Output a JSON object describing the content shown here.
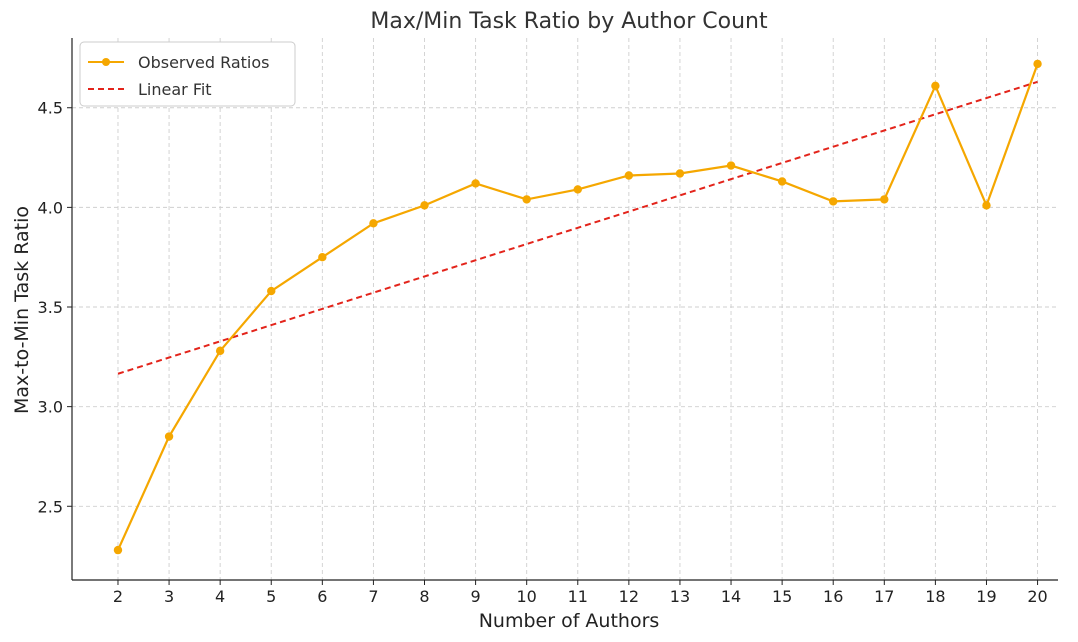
{
  "chart_data": {
    "type": "line",
    "title": "Max/Min Task Ratio by Author Count",
    "xlabel": "Number of Authors",
    "ylabel": "Max-to-Min Task Ratio",
    "x": [
      2,
      3,
      4,
      5,
      6,
      7,
      8,
      9,
      10,
      11,
      12,
      13,
      14,
      15,
      16,
      17,
      18,
      19,
      20
    ],
    "xlim": [
      1.1,
      20.4
    ],
    "ylim": [
      2.13,
      4.85
    ],
    "y_ticks": [
      2.5,
      3.0,
      3.5,
      4.0,
      4.5
    ],
    "y_tick_labels": [
      "2.5",
      "3.0",
      "3.5",
      "4.0",
      "4.5"
    ],
    "grid": true,
    "legend_position": "top-left",
    "series": [
      {
        "name": "Observed Ratios",
        "style": "line-markers",
        "color": "#f5a700",
        "values": [
          2.28,
          2.85,
          3.28,
          3.58,
          3.75,
          3.92,
          4.01,
          4.12,
          4.04,
          4.09,
          4.16,
          4.17,
          4.21,
          4.13,
          4.03,
          4.04,
          4.61,
          4.01,
          4.72
        ]
      },
      {
        "name": "Linear Fit",
        "style": "dashed",
        "color": "#e3241b",
        "endpoints": [
          [
            2,
            3.165
          ],
          [
            20,
            4.63
          ]
        ]
      }
    ]
  }
}
